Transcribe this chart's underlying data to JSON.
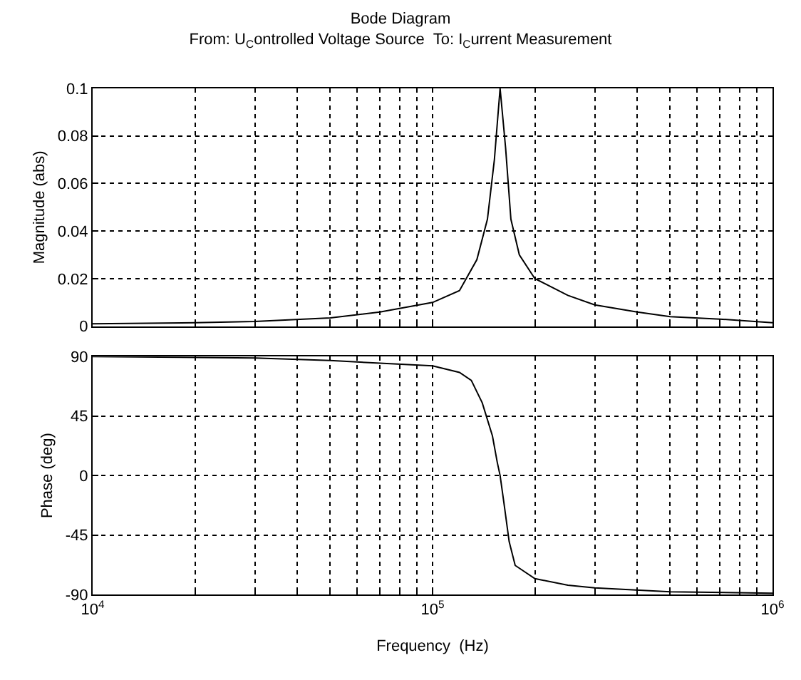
{
  "chart_data": [
    {
      "type": "line",
      "title": "Bode Diagram",
      "subtitle": "From: U$_{C}$ontrolled Voltage Source  To: I$_{C}$urrent Measurement",
      "ylabel": "Magnitude (abs)",
      "x": [
        10000,
        20000,
        30000,
        50000,
        70000,
        100000,
        120000,
        135000,
        145000,
        152000,
        158000,
        164000,
        170000,
        180000,
        200000,
        250000,
        300000,
        400000,
        500000,
        700000,
        1000000
      ],
      "series": [
        {
          "color": "#000000",
          "values": [
            0.001,
            0.0015,
            0.002,
            0.0035,
            0.006,
            0.01,
            0.015,
            0.028,
            0.045,
            0.07,
            0.1,
            0.075,
            0.045,
            0.03,
            0.02,
            0.013,
            0.009,
            0.006,
            0.004,
            0.003,
            0.0015
          ]
        }
      ],
      "log": "x",
      "xlim": [
        10000,
        1000000
      ],
      "ylim": [
        0,
        0.1
      ],
      "yticks": [
        0,
        0.02,
        0.04,
        0.06,
        0.08,
        0.1
      ],
      "xticks": [
        {
          "value": 10000,
          "label": "10$^{4}$"
        },
        {
          "value": 20000,
          "label": null
        },
        {
          "value": 30000,
          "label": null
        },
        {
          "value": 40000,
          "label": null
        },
        {
          "value": 50000,
          "label": null
        },
        {
          "value": 60000,
          "label": null
        },
        {
          "value": 70000,
          "label": null
        },
        {
          "value": 80000,
          "label": null
        },
        {
          "value": 90000,
          "label": null
        },
        {
          "value": 100000,
          "label": "10$^{5}$"
        },
        {
          "value": 200000,
          "label": null
        },
        {
          "value": 300000,
          "label": null
        },
        {
          "value": 400000,
          "label": null
        },
        {
          "value": 500000,
          "label": null
        },
        {
          "value": 600000,
          "label": null
        },
        {
          "value": 700000,
          "label": null
        },
        {
          "value": 800000,
          "label": null
        },
        {
          "value": 900000,
          "label": null
        },
        {
          "value": 1000000,
          "label": "10$^{6}$"
        }
      ],
      "tick_labels": "y",
      "grid": true,
      "line_style": "solid"
    },
    {
      "type": "line",
      "xlabel": "Frequency  (Hz)",
      "ylabel": "Phase (deg)",
      "x": [
        10000,
        30000,
        50000,
        70000,
        100000,
        120000,
        130000,
        140000,
        150000,
        155000,
        158000,
        162000,
        168000,
        175000,
        200000,
        250000,
        300000,
        500000,
        1000000
      ],
      "series": [
        {
          "color": "#000000",
          "values": [
            90,
            89,
            87,
            85,
            83,
            78,
            72,
            55,
            30,
            10,
            0,
            -20,
            -50,
            -68,
            -78,
            -83,
            -85,
            -88,
            -89
          ]
        }
      ],
      "log": "x",
      "xlim": [
        10000,
        1000000
      ],
      "ylim": [
        -90,
        90
      ],
      "yticks": [
        -90,
        -45,
        0,
        45,
        90
      ],
      "xticks": [
        {
          "value": 10000,
          "label": "10$^{4}$"
        },
        {
          "value": 20000,
          "label": null
        },
        {
          "value": 30000,
          "label": null
        },
        {
          "value": 40000,
          "label": null
        },
        {
          "value": 50000,
          "label": null
        },
        {
          "value": 60000,
          "label": null
        },
        {
          "value": 70000,
          "label": null
        },
        {
          "value": 80000,
          "label": null
        },
        {
          "value": 90000,
          "label": null
        },
        {
          "value": 100000,
          "label": "10$^{5}$"
        },
        {
          "value": 200000,
          "label": null
        },
        {
          "value": 300000,
          "label": null
        },
        {
          "value": 400000,
          "label": null
        },
        {
          "value": 500000,
          "label": null
        },
        {
          "value": 600000,
          "label": null
        },
        {
          "value": 700000,
          "label": null
        },
        {
          "value": 800000,
          "label": null
        },
        {
          "value": 900000,
          "label": null
        },
        {
          "value": 1000000,
          "label": "10$^{6}$"
        }
      ],
      "grid": true,
      "line_style": "solid"
    }
  ]
}
